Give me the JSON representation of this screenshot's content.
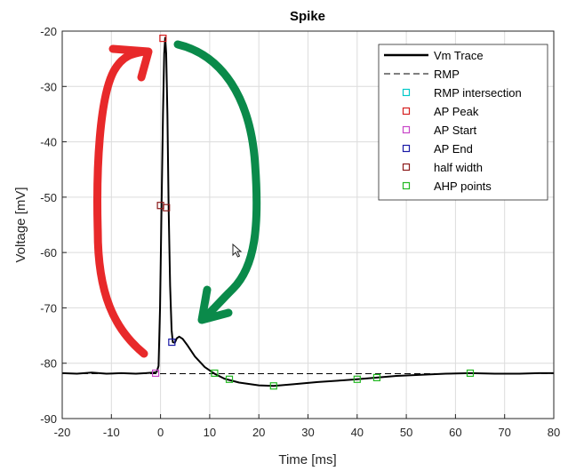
{
  "chart_data": {
    "type": "line",
    "title": "Spike",
    "xlabel": "Time [ms]",
    "ylabel": "Voltage [mV]",
    "xlim": [
      -20,
      80
    ],
    "ylim": [
      -90,
      -20
    ],
    "xticks": [
      -20,
      -10,
      0,
      10,
      20,
      30,
      40,
      50,
      60,
      70,
      80
    ],
    "yticks": [
      -20,
      -30,
      -40,
      -50,
      -60,
      -70,
      -80,
      -90
    ],
    "grid": true,
    "legend_position": "top-right",
    "colors": {
      "trace": "#000000",
      "rmp": "#000000",
      "rmp_intersection": "#00c8c8",
      "ap_peak": "#d62020",
      "ap_start": "#c846c8",
      "ap_end": "#1a1aa6",
      "half_width": "#8b1a1a",
      "ahp_points": "#22b822",
      "annotation_red": "#e8292a",
      "annotation_green": "#0a8a4a"
    },
    "series": [
      {
        "name": "Vm Trace",
        "style": "solid",
        "points": [
          [
            -20,
            -81.8
          ],
          [
            -17,
            -81.9
          ],
          [
            -14,
            -81.7
          ],
          [
            -11,
            -81.9
          ],
          [
            -8,
            -81.8
          ],
          [
            -5,
            -81.9
          ],
          [
            -3,
            -81.8
          ],
          [
            -1.5,
            -81.7
          ],
          [
            -0.8,
            -81.6
          ],
          [
            -0.4,
            -80.5
          ],
          [
            -0.1,
            -70
          ],
          [
            0.2,
            -52
          ],
          [
            0.5,
            -35
          ],
          [
            0.75,
            -24
          ],
          [
            0.95,
            -21.2
          ],
          [
            1.15,
            -24
          ],
          [
            1.4,
            -35
          ],
          [
            1.65,
            -52
          ],
          [
            1.95,
            -66
          ],
          [
            2.25,
            -74
          ],
          [
            2.5,
            -76.2
          ],
          [
            2.9,
            -76.3
          ],
          [
            3.3,
            -75.5
          ],
          [
            3.8,
            -75.2
          ],
          [
            4.5,
            -75.6
          ],
          [
            5.5,
            -76.8
          ],
          [
            7,
            -78.8
          ],
          [
            9,
            -80.7
          ],
          [
            11,
            -81.9
          ],
          [
            13,
            -82.8
          ],
          [
            16,
            -83.5
          ],
          [
            20,
            -84
          ],
          [
            23,
            -84.1
          ],
          [
            27,
            -83.8
          ],
          [
            32,
            -83.4
          ],
          [
            37,
            -83.1
          ],
          [
            40,
            -82.9
          ],
          [
            44,
            -82.6
          ],
          [
            48,
            -82.3
          ],
          [
            53,
            -82.1
          ],
          [
            58,
            -81.9
          ],
          [
            63,
            -81.8
          ],
          [
            68,
            -81.9
          ],
          [
            73,
            -81.9
          ],
          [
            77,
            -81.8
          ],
          [
            80,
            -81.8
          ]
        ]
      },
      {
        "name": "RMP",
        "style": "dashed",
        "value": -81.9
      },
      {
        "name": "RMP intersection",
        "marker": "square",
        "points": []
      },
      {
        "name": "AP Peak",
        "marker": "square",
        "points": [
          [
            0.5,
            -21.3
          ]
        ]
      },
      {
        "name": "AP Start",
        "marker": "square",
        "points": [
          [
            -1,
            -81.8
          ]
        ]
      },
      {
        "name": "AP End",
        "marker": "square",
        "points": [
          [
            2.3,
            -76.2
          ]
        ]
      },
      {
        "name": "half width",
        "marker": "square",
        "points": [
          [
            0,
            -51.5
          ],
          [
            1.2,
            -51.9
          ]
        ]
      },
      {
        "name": "AHP points",
        "marker": "square",
        "points": [
          [
            11,
            -81.8
          ],
          [
            14,
            -82.9
          ],
          [
            23,
            -84.1
          ],
          [
            40,
            -82.9
          ],
          [
            44,
            -82.6
          ],
          [
            63,
            -81.8
          ]
        ]
      }
    ]
  }
}
